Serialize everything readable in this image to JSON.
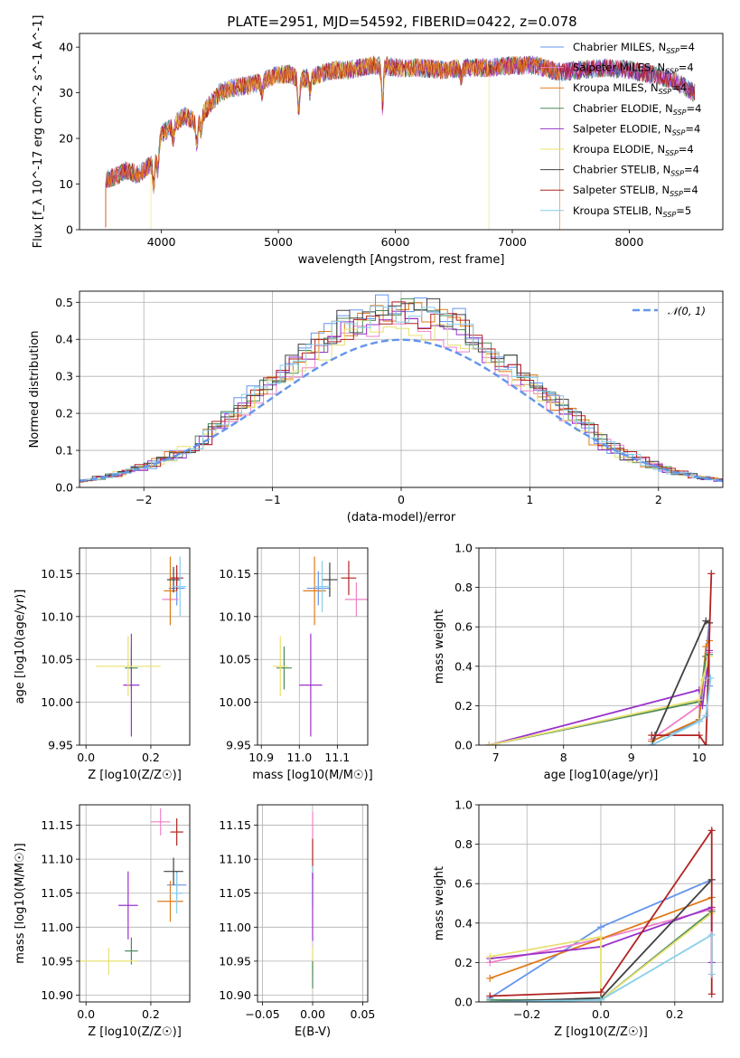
{
  "figure_title": "PLATE=2951, MJD=54592, FIBERID=0422, z=0.078",
  "colors": {
    "Chabrier MILES": "#6495ed",
    "Salpeter MILES": "#ee82c8",
    "Kroupa MILES": "#e07b1a",
    "Chabrier ELODIE": "#4a8a5a",
    "Salpeter ELODIE": "#9932cc",
    "Kroupa ELODIE": "#e8e070",
    "Chabrier STELIB": "#404040",
    "Salpeter STELIB": "#b22222",
    "Kroupa STELIB": "#87ceeb"
  },
  "chart_data": [
    {
      "id": "spectrum",
      "type": "line",
      "title": "PLATE=2951, MJD=54592, FIBERID=0422, z=0.078",
      "xlabel": "wavelength [Angstrom, rest frame]",
      "ylabel": "Flux [f_λ 10^-17 erg cm^-2 s^-1 A^-1]",
      "xlim": [
        3300,
        8800
      ],
      "ylim": [
        0,
        43
      ],
      "xticks": [
        4000,
        5000,
        6000,
        7000,
        8000
      ],
      "yticks": [
        0,
        10,
        20,
        30,
        40
      ],
      "grid": false,
      "legend_position": "top-right",
      "legend": [
        "Chabrier MILES, N_SSP=4",
        "Salpeter MILES, N_SSP=4",
        "Kroupa MILES, N_SSP=4",
        "Chabrier ELODIE, N_SSP=4",
        "Salpeter ELODIE, N_SSP=4",
        "Kroupa ELODIE, N_SSP=4",
        "Chabrier STELIB, N_SSP=4",
        "Salpeter STELIB, N_SSP=4",
        "Kroupa STELIB, N_SSP=5"
      ],
      "continuum": {
        "x": [
          3520,
          3600,
          3700,
          3800,
          3900,
          3950,
          4000,
          4100,
          4200,
          4300,
          4400,
          4500,
          4600,
          4700,
          4800,
          4900,
          5000,
          5100,
          5200,
          5300,
          5400,
          5500,
          5600,
          5700,
          5800,
          5900,
          6000,
          6200,
          6400,
          6600,
          6800,
          7000,
          7200,
          7400,
          7600,
          7800,
          8000,
          8200,
          8400,
          8550
        ],
        "y": [
          11,
          11.5,
          13,
          12,
          14,
          16,
          21,
          23,
          25,
          23.5,
          27,
          30,
          31,
          31.5,
          32,
          33,
          34,
          34,
          33,
          33.5,
          34.5,
          35,
          35,
          35.5,
          36,
          36,
          35.5,
          35.5,
          35,
          35.5,
          35.5,
          36,
          36,
          34.5,
          35,
          35.5,
          35,
          34,
          32.5,
          30
        ]
      },
      "absorption_lines": [
        {
          "x": 3934,
          "depth": 6
        },
        {
          "x": 3969,
          "depth": 5
        },
        {
          "x": 4101,
          "depth": 3
        },
        {
          "x": 4304,
          "depth": 5
        },
        {
          "x": 4340,
          "depth": 3
        },
        {
          "x": 4861,
          "depth": 3
        },
        {
          "x": 5175,
          "depth": 7
        },
        {
          "x": 5270,
          "depth": 3
        },
        {
          "x": 5890,
          "depth": 9
        },
        {
          "x": 6563,
          "depth": 2
        }
      ],
      "model_cutoffs": [
        {
          "model": "Kroupa MILES",
          "x_start": 3540
        },
        {
          "model": "Kroupa ELODIE",
          "x_start": 3900,
          "x_end": 6800
        },
        {
          "model": "Kroupa MILES",
          "x_end": 7400
        }
      ]
    },
    {
      "id": "residual_histogram",
      "type": "line",
      "xlabel": "(data-model)/error",
      "ylabel": "Normed distribution",
      "xlim": [
        -2.5,
        2.5
      ],
      "ylim": [
        0,
        0.53
      ],
      "xticks": [
        -2,
        -1,
        0,
        1,
        2
      ],
      "yticks": [
        0.0,
        0.1,
        0.2,
        0.3,
        0.4,
        0.5
      ],
      "grid": true,
      "legend_position": "top-right",
      "reference": {
        "name": "𝒩(0, 1)",
        "mean": 0,
        "sigma": 1,
        "color": "#6495ed",
        "style": "dashed"
      },
      "bin_width": 0.1,
      "peak_values": {
        "Chabrier MILES": 0.5,
        "Salpeter MILES": 0.44,
        "Kroupa MILES": 0.47,
        "Chabrier ELODIE": 0.48,
        "Salpeter ELODIE": 0.46,
        "Kroupa ELODIE": 0.44,
        "Chabrier STELIB": 0.49,
        "Salpeter STELIB": 0.47,
        "Kroupa STELIB": 0.48
      }
    },
    {
      "id": "age_vs_Z",
      "type": "scatter",
      "xlabel": "Z [log10(Z/Z☉)]",
      "ylabel": "age [log10(age/yr)]",
      "xlim": [
        -0.02,
        0.32
      ],
      "ylim": [
        9.95,
        10.18
      ],
      "xticks": [
        0.0,
        0.2
      ],
      "yticks": [
        9.95,
        10.0,
        10.05,
        10.1,
        10.15
      ],
      "grid": true,
      "points": [
        {
          "model": "Chabrier MILES",
          "x": 0.28,
          "y": 10.133,
          "xerr": 0.025,
          "yerr": 0.02
        },
        {
          "model": "Salpeter MILES",
          "x": 0.26,
          "y": 10.12,
          "xerr": 0.025,
          "yerr": 0.03
        },
        {
          "model": "Kroupa MILES",
          "x": 0.26,
          "y": 10.13,
          "xerr": 0.02,
          "yerr": 0.04
        },
        {
          "model": "Chabrier ELODIE",
          "x": 0.14,
          "y": 10.04,
          "xerr": 0.02,
          "yerr": 0.025
        },
        {
          "model": "Salpeter ELODIE",
          "x": 0.14,
          "y": 10.02,
          "xerr": 0.025,
          "yerr": 0.06
        },
        {
          "model": "Kroupa ELODIE",
          "x": 0.13,
          "y": 10.042,
          "xerr": 0.1,
          "yerr": 0.035
        },
        {
          "model": "Chabrier STELIB",
          "x": 0.27,
          "y": 10.143,
          "xerr": 0.02,
          "yerr": 0.015
        },
        {
          "model": "Salpeter STELIB",
          "x": 0.28,
          "y": 10.145,
          "xerr": 0.02,
          "yerr": 0.015
        },
        {
          "model": "Kroupa STELIB",
          "x": 0.29,
          "y": 10.135,
          "xerr": 0.02,
          "yerr": 0.035
        }
      ]
    },
    {
      "id": "age_vs_mass",
      "type": "scatter",
      "xlabel": "mass [log10(M/M☉)]",
      "ylabel": "",
      "xlim": [
        10.89,
        11.18
      ],
      "ylim": [
        9.95,
        10.18
      ],
      "xticks": [
        10.9,
        11.0,
        11.1
      ],
      "yticks": [
        9.95,
        10.0,
        10.05,
        10.1,
        10.15
      ],
      "grid": true,
      "points": [
        {
          "model": "Chabrier MILES",
          "x": 11.05,
          "y": 10.133,
          "xerr": 0.03,
          "yerr": 0.02
        },
        {
          "model": "Salpeter MILES",
          "x": 11.15,
          "y": 10.12,
          "xerr": 0.03,
          "yerr": 0.02
        },
        {
          "model": "Kroupa MILES",
          "x": 11.04,
          "y": 10.13,
          "xerr": 0.03,
          "yerr": 0.04
        },
        {
          "model": "Chabrier ELODIE",
          "x": 10.96,
          "y": 10.04,
          "xerr": 0.02,
          "yerr": 0.025
        },
        {
          "model": "Salpeter ELODIE",
          "x": 11.03,
          "y": 10.02,
          "xerr": 0.03,
          "yerr": 0.06
        },
        {
          "model": "Kroupa ELODIE",
          "x": 10.95,
          "y": 10.042,
          "xerr": 0.02,
          "yerr": 0.035
        },
        {
          "model": "Chabrier STELIB",
          "x": 11.08,
          "y": 10.143,
          "xerr": 0.02,
          "yerr": 0.02
        },
        {
          "model": "Salpeter STELIB",
          "x": 11.13,
          "y": 10.145,
          "xerr": 0.02,
          "yerr": 0.02
        },
        {
          "model": "Kroupa STELIB",
          "x": 11.06,
          "y": 10.135,
          "xerr": 0.02,
          "yerr": 0.03
        }
      ]
    },
    {
      "id": "mass_weight_vs_age",
      "type": "line",
      "xlabel": "age [log10(age/yr)]",
      "ylabel": "mass weight",
      "xlim": [
        6.75,
        10.35
      ],
      "ylim": [
        0,
        1.0
      ],
      "xticks": [
        7,
        8,
        9,
        10
      ],
      "yticks": [
        0.0,
        0.2,
        0.4,
        0.6,
        0.8,
        1.0
      ],
      "grid": true,
      "series": [
        {
          "model": "Chabrier MILES",
          "x": [
            9.3,
            10.0,
            10.15,
            10.15
          ],
          "y": [
            0.02,
            0.12,
            0.62,
            0.3
          ]
        },
        {
          "model": "Salpeter MILES",
          "x": [
            9.3,
            10.0,
            10.1,
            10.15
          ],
          "y": [
            0.03,
            0.2,
            0.45,
            0.47
          ]
        },
        {
          "model": "Kroupa MILES",
          "x": [
            9.3,
            10.0,
            10.1,
            10.15
          ],
          "y": [
            0.02,
            0.13,
            0.5,
            0.53
          ]
        },
        {
          "model": "Chabrier ELODIE",
          "x": [
            6.9,
            10.0,
            10.1,
            10.15
          ],
          "y": [
            0.0,
            0.22,
            0.45,
            0.46
          ]
        },
        {
          "model": "Salpeter ELODIE",
          "x": [
            6.9,
            10.0,
            10.05,
            10.15
          ],
          "y": [
            0.0,
            0.28,
            0.2,
            0.48
          ]
        },
        {
          "model": "Kroupa ELODIE",
          "x": [
            6.9,
            10.0,
            10.05,
            10.15
          ],
          "y": [
            0.0,
            0.23,
            0.33,
            0.45
          ]
        },
        {
          "model": "Chabrier STELIB",
          "x": [
            9.3,
            9.35,
            10.1,
            10.15
          ],
          "y": [
            0.0,
            0.05,
            0.63,
            0.62
          ]
        },
        {
          "model": "Salpeter STELIB",
          "x": [
            9.3,
            10.0,
            10.1,
            10.18
          ],
          "y": [
            0.05,
            0.05,
            0.0,
            0.87
          ]
        },
        {
          "model": "Kroupa STELIB",
          "x": [
            9.3,
            10.0,
            10.1,
            10.17
          ],
          "y": [
            0.0,
            0.12,
            0.15,
            0.34
          ]
        }
      ]
    },
    {
      "id": "mass_vs_Z",
      "type": "scatter",
      "xlabel": "Z [log10(Z/Z☉)]",
      "ylabel": "mass [log10(M/M☉)]",
      "xlim": [
        -0.02,
        0.32
      ],
      "ylim": [
        10.89,
        11.18
      ],
      "xticks": [
        0.0,
        0.2
      ],
      "yticks": [
        10.9,
        10.95,
        11.0,
        11.05,
        11.1,
        11.15
      ],
      "grid": true,
      "points": [
        {
          "model": "Chabrier MILES",
          "x": 0.28,
          "y": 11.062,
          "xerr": 0.03,
          "yerr": 0.02
        },
        {
          "model": "Salpeter MILES",
          "x": 0.23,
          "y": 11.155,
          "xerr": 0.03,
          "yerr": 0.02
        },
        {
          "model": "Kroupa MILES",
          "x": 0.26,
          "y": 11.038,
          "xerr": 0.04,
          "yerr": 0.03
        },
        {
          "model": "Chabrier ELODIE",
          "x": 0.14,
          "y": 10.965,
          "xerr": 0.02,
          "yerr": 0.02
        },
        {
          "model": "Salpeter ELODIE",
          "x": 0.13,
          "y": 11.032,
          "xerr": 0.03,
          "yerr": 0.05
        },
        {
          "model": "Kroupa ELODIE",
          "x": 0.07,
          "y": 10.95,
          "xerr": 0.09,
          "yerr": 0.02
        },
        {
          "model": "Chabrier STELIB",
          "x": 0.27,
          "y": 11.082,
          "xerr": 0.03,
          "yerr": 0.02
        },
        {
          "model": "Salpeter STELIB",
          "x": 0.28,
          "y": 11.14,
          "xerr": 0.02,
          "yerr": 0.02
        },
        {
          "model": "Kroupa STELIB",
          "x": 0.28,
          "y": 11.05,
          "xerr": 0.02,
          "yerr": 0.03
        }
      ]
    },
    {
      "id": "mass_vs_ebv",
      "type": "scatter",
      "xlabel": "E(B-V)",
      "ylabel": "",
      "xlim": [
        -0.055,
        0.055
      ],
      "ylim": [
        10.89,
        11.18
      ],
      "xticks": [
        -0.05,
        0.0,
        0.05
      ],
      "yticks": [
        10.9,
        10.95,
        11.0,
        11.05,
        11.1,
        11.15
      ],
      "grid": true,
      "points": [
        {
          "model": "Salpeter MILES",
          "x": 0.0,
          "y": 11.15,
          "xerr": 0,
          "yerr": 0.02
        },
        {
          "model": "Salpeter STELIB",
          "x": 0.0,
          "y": 11.1,
          "xerr": 0,
          "yerr": 0.03
        },
        {
          "model": "Kroupa STELIB",
          "x": 0.0,
          "y": 11.06,
          "xerr": 0,
          "yerr": 0.03
        },
        {
          "model": "Salpeter ELODIE",
          "x": 0.0,
          "y": 11.03,
          "xerr": 0,
          "yerr": 0.05
        },
        {
          "model": "Kroupa ELODIE",
          "x": 0.0,
          "y": 10.95,
          "xerr": 0,
          "yerr": 0.02
        },
        {
          "model": "Chabrier ELODIE",
          "x": 0.0,
          "y": 10.93,
          "xerr": 0,
          "yerr": 0.02
        }
      ]
    },
    {
      "id": "mass_weight_vs_Z",
      "type": "line",
      "xlabel": "Z [log10(Z/Z☉)]",
      "ylabel": "mass weight",
      "xlim": [
        -0.33,
        0.33
      ],
      "ylim": [
        0,
        1.0
      ],
      "xticks": [
        -0.2,
        0.0,
        0.2
      ],
      "yticks": [
        0.0,
        0.2,
        0.4,
        0.6,
        0.8,
        1.0
      ],
      "grid": true,
      "series": [
        {
          "model": "Chabrier MILES",
          "x": [
            -0.3,
            0.0,
            0.3
          ],
          "y": [
            0.02,
            0.38,
            0.62
          ]
        },
        {
          "model": "Salpeter MILES",
          "x": [
            -0.3,
            0.0,
            0.3
          ],
          "y": [
            0.2,
            0.32,
            0.47
          ]
        },
        {
          "model": "Kroupa MILES",
          "x": [
            -0.3,
            0.0,
            0.3
          ],
          "y": [
            0.12,
            0.32,
            0.53
          ]
        },
        {
          "model": "Chabrier ELODIE",
          "x": [
            -0.3,
            0.0,
            0.3
          ],
          "y": [
            0.01,
            0.01,
            0.46
          ]
        },
        {
          "model": "Salpeter ELODIE",
          "x": [
            -0.3,
            0.0,
            0.3,
            0.3
          ],
          "y": [
            0.22,
            0.28,
            0.48,
            0.2
          ]
        },
        {
          "model": "Kroupa ELODIE",
          "x": [
            -0.3,
            0.0,
            0.0,
            0.3
          ],
          "y": [
            0.23,
            0.33,
            0.01,
            0.45
          ]
        },
        {
          "model": "Chabrier STELIB",
          "x": [
            -0.3,
            0.0,
            0.3
          ],
          "y": [
            0.0,
            0.02,
            0.62
          ]
        },
        {
          "model": "Salpeter STELIB",
          "x": [
            -0.3,
            0.0,
            0.3,
            0.3
          ],
          "y": [
            0.03,
            0.05,
            0.87,
            0.04
          ]
        },
        {
          "model": "Kroupa STELIB",
          "x": [
            -0.3,
            0.0,
            0.3,
            0.3
          ],
          "y": [
            0.0,
            0.01,
            0.34,
            0.14
          ]
        }
      ]
    }
  ]
}
